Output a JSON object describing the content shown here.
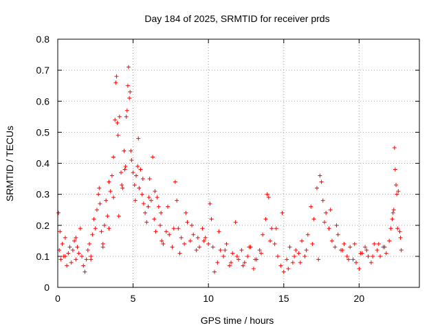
{
  "chart_data": {
    "type": "scatter",
    "title": "Day 184 of 2025, SRMTID for receiver prds",
    "xlabel": "GPS time / hours",
    "ylabel": "SRMTID / TECUs",
    "xlim": [
      0,
      24
    ],
    "ylim": [
      0,
      0.8
    ],
    "x_ticks": [
      0,
      5,
      10,
      15,
      20
    ],
    "x_tick_labels": [
      "0",
      "5",
      "10",
      "15",
      "20"
    ],
    "y_ticks": [
      0,
      0.1,
      0.2,
      0.3,
      0.4,
      0.5,
      0.6,
      0.7,
      0.8
    ],
    "y_tick_labels": [
      "0",
      "0.1",
      "0.2",
      "0.3",
      "0.4",
      "0.5",
      "0.6",
      "0.7",
      "0.8"
    ],
    "grid": true,
    "marker": "+",
    "marker_color": "#ff0000",
    "series": [
      {
        "name": "SRMTID",
        "x": [
          0.05,
          0.1,
          0.15,
          0.2,
          0.3,
          0.4,
          0.5,
          0.6,
          0.7,
          0.8,
          0.9,
          1.0,
          1.1,
          1.2,
          1.3,
          1.4,
          1.5,
          1.6,
          1.7,
          1.8,
          1.9,
          2.0,
          2.1,
          2.2,
          2.3,
          2.4,
          2.5,
          2.6,
          2.7,
          2.75,
          2.8,
          2.9,
          3.0,
          3.1,
          3.2,
          3.3,
          3.4,
          3.5,
          3.6,
          3.7,
          3.8,
          3.85,
          3.9,
          3.95,
          4.0,
          4.1,
          4.2,
          4.3,
          4.4,
          4.5,
          4.55,
          4.6,
          4.65,
          4.7,
          4.75,
          4.8,
          4.9,
          5.0,
          5.1,
          5.2,
          5.3,
          5.4,
          5.5,
          5.6,
          5.7,
          5.8,
          5.9,
          6.0,
          6.1,
          6.2,
          6.3,
          6.4,
          6.5,
          6.6,
          6.7,
          6.8,
          6.9,
          7.0,
          7.2,
          7.4,
          7.6,
          7.8,
          7.9,
          8.0,
          8.2,
          8.4,
          8.6,
          8.8,
          9.0,
          9.2,
          9.4,
          9.6,
          9.8,
          10.0,
          10.1,
          10.2,
          10.4,
          10.6,
          10.8,
          11.0,
          11.2,
          11.4,
          11.6,
          11.8,
          12.0,
          12.2,
          12.4,
          12.6,
          12.8,
          13.0,
          13.2,
          13.4,
          13.6,
          13.8,
          13.9,
          14.0,
          14.2,
          14.4,
          14.6,
          14.8,
          15.0,
          15.2,
          15.4,
          15.6,
          15.8,
          16.0,
          16.2,
          16.4,
          16.6,
          16.8,
          17.0,
          17.2,
          17.4,
          17.5,
          17.6,
          17.8,
          18.0,
          18.2,
          18.4,
          18.6,
          18.8,
          19.0,
          19.2,
          19.4,
          19.6,
          19.8,
          20.0,
          20.2,
          20.4,
          20.6,
          20.8,
          21.0,
          21.2,
          21.4,
          21.6,
          21.8,
          22.0,
          22.1,
          22.2,
          22.3,
          22.35,
          22.4,
          22.45,
          22.5,
          22.6,
          22.7,
          22.8,
          0.5,
          1.2,
          2.2,
          3.0,
          3.4,
          3.7,
          4.05,
          4.25,
          4.45,
          4.85,
          5.15,
          5.35,
          5.65,
          6.05,
          6.45,
          6.85,
          7.3,
          7.7,
          8.1,
          8.5,
          8.9,
          9.3,
          9.7,
          10.3,
          10.7,
          11.1,
          11.5,
          11.9,
          12.3,
          12.7,
          13.1,
          13.5,
          14.1,
          14.5,
          14.9,
          15.3,
          15.7,
          16.1,
          16.5,
          16.9,
          17.3,
          17.7,
          18.1,
          18.5,
          18.9,
          19.3,
          19.7,
          20.1,
          20.5,
          20.9,
          21.3,
          21.7,
          22.25,
          22.55,
          22.75
        ],
        "y": [
          0.24,
          0.12,
          0.18,
          0.09,
          0.14,
          0.1,
          0.16,
          0.07,
          0.11,
          0.13,
          0.08,
          0.12,
          0.15,
          0.09,
          0.13,
          0.11,
          0.19,
          0.1,
          0.07,
          0.05,
          0.09,
          0.12,
          0.14,
          0.1,
          0.17,
          0.22,
          0.19,
          0.25,
          0.3,
          0.32,
          0.27,
          0.18,
          0.14,
          0.2,
          0.28,
          0.23,
          0.34,
          0.31,
          0.36,
          0.42,
          0.54,
          0.66,
          0.68,
          0.53,
          0.49,
          0.55,
          0.37,
          0.32,
          0.44,
          0.39,
          0.55,
          0.57,
          0.65,
          0.71,
          0.61,
          0.63,
          0.41,
          0.37,
          0.33,
          0.36,
          0.39,
          0.32,
          0.38,
          0.3,
          0.27,
          0.24,
          0.21,
          0.26,
          0.35,
          0.28,
          0.42,
          0.22,
          0.18,
          0.29,
          0.26,
          0.2,
          0.15,
          0.14,
          0.18,
          0.17,
          0.13,
          0.34,
          0.28,
          0.19,
          0.16,
          0.14,
          0.21,
          0.15,
          0.17,
          0.12,
          0.13,
          0.19,
          0.16,
          0.14,
          0.27,
          0.22,
          0.05,
          0.08,
          0.12,
          0.1,
          0.14,
          0.07,
          0.11,
          0.21,
          0.09,
          0.12,
          0.08,
          0.1,
          0.13,
          0.06,
          0.09,
          0.12,
          0.17,
          0.22,
          0.3,
          0.29,
          0.19,
          0.14,
          0.1,
          0.07,
          0.05,
          0.09,
          0.13,
          0.08,
          0.12,
          0.11,
          0.15,
          0.1,
          0.17,
          0.26,
          0.22,
          0.32,
          0.36,
          0.34,
          0.28,
          0.24,
          0.19,
          0.15,
          0.13,
          0.17,
          0.12,
          0.14,
          0.1,
          0.13,
          0.09,
          0.08,
          0.06,
          0.11,
          0.13,
          0.1,
          0.08,
          0.14,
          0.12,
          0.1,
          0.13,
          0.11,
          0.15,
          0.19,
          0.22,
          0.25,
          0.45,
          0.38,
          0.33,
          0.3,
          0.31,
          0.18,
          0.12,
          0.1,
          0.16,
          0.09,
          0.13,
          0.19,
          0.29,
          0.23,
          0.33,
          0.38,
          0.44,
          0.28,
          0.48,
          0.35,
          0.29,
          0.31,
          0.24,
          0.26,
          0.19,
          0.11,
          0.24,
          0.2,
          0.16,
          0.15,
          0.13,
          0.18,
          0.12,
          0.08,
          0.1,
          0.07,
          0.13,
          0.09,
          0.11,
          0.15,
          0.19,
          0.24,
          0.06,
          0.1,
          0.08,
          0.12,
          0.14,
          0.09,
          0.21,
          0.25,
          0.2,
          0.12,
          0.09,
          0.14,
          0.11,
          0.12,
          0.1,
          0.14,
          0.13,
          0.24,
          0.19,
          0.16
        ]
      }
    ]
  }
}
